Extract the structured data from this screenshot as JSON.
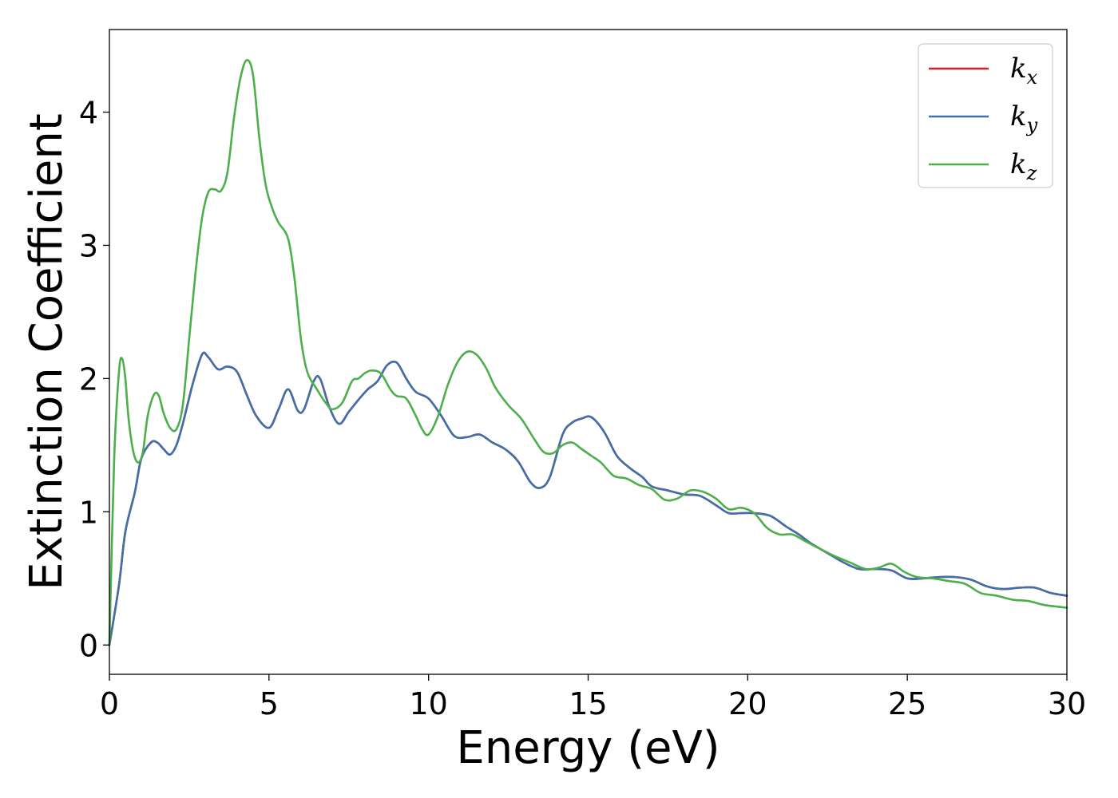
{
  "chart_data": {
    "type": "line",
    "title": "",
    "xlabel": "Energy (eV)",
    "ylabel": "Extinction Coefficient",
    "xlim": [
      0,
      30
    ],
    "ylim": [
      -0.22,
      4.62
    ],
    "xticks": [
      0,
      5,
      10,
      15,
      20,
      25,
      30
    ],
    "yticks": [
      0,
      1,
      2,
      3,
      4
    ],
    "grid": false,
    "legend_position": "top-right",
    "series": [
      {
        "name": "k",
        "subscript": "x",
        "color": "#e41a1c",
        "x": [
          0,
          0.3,
          0.5,
          0.8,
          1.0,
          1.3,
          1.5,
          1.7,
          1.9,
          2.1,
          2.3,
          2.6,
          2.9,
          3.1,
          3.4,
          3.7,
          4.0,
          4.3,
          4.6,
          5.0,
          5.3,
          5.6,
          5.9,
          6.1,
          6.4,
          6.6,
          6.9,
          7.2,
          7.5,
          7.8,
          8.1,
          8.4,
          8.7,
          9.0,
          9.3,
          9.6,
          10.0,
          10.4,
          10.8,
          11.2,
          11.6,
          12.0,
          12.4,
          12.8,
          13.2,
          13.5,
          13.8,
          14.2,
          14.5,
          14.8,
          15.1,
          15.5,
          15.9,
          16.3,
          16.7,
          17.0,
          17.5,
          18.0,
          18.5,
          19.0,
          19.4,
          19.8,
          20.2,
          20.7,
          21.2,
          21.6,
          22.0,
          22.5,
          23.0,
          23.5,
          24.0,
          24.5,
          25.0,
          25.5,
          26.0,
          26.5,
          27.0,
          27.5,
          28.0,
          28.5,
          29.0,
          29.5,
          30.0
        ],
        "y": [
          0.0,
          0.45,
          0.85,
          1.15,
          1.4,
          1.52,
          1.52,
          1.47,
          1.43,
          1.5,
          1.66,
          1.95,
          2.18,
          2.16,
          2.07,
          2.09,
          2.05,
          1.88,
          1.72,
          1.63,
          1.77,
          1.92,
          1.76,
          1.77,
          1.98,
          2.0,
          1.78,
          1.66,
          1.75,
          1.84,
          1.92,
          1.98,
          2.1,
          2.12,
          2.0,
          1.9,
          1.85,
          1.72,
          1.57,
          1.56,
          1.58,
          1.52,
          1.47,
          1.38,
          1.22,
          1.18,
          1.26,
          1.58,
          1.67,
          1.7,
          1.71,
          1.6,
          1.42,
          1.33,
          1.26,
          1.19,
          1.16,
          1.13,
          1.12,
          1.05,
          0.99,
          0.99,
          0.99,
          0.97,
          0.89,
          0.83,
          0.76,
          0.69,
          0.62,
          0.57,
          0.57,
          0.56,
          0.5,
          0.5,
          0.51,
          0.51,
          0.49,
          0.44,
          0.42,
          0.43,
          0.43,
          0.39,
          0.37
        ]
      },
      {
        "name": "k",
        "subscript": "y",
        "color": "#3e71ab",
        "x": [
          0,
          0.3,
          0.5,
          0.8,
          1.0,
          1.3,
          1.5,
          1.7,
          1.9,
          2.1,
          2.3,
          2.6,
          2.9,
          3.1,
          3.4,
          3.7,
          4.0,
          4.3,
          4.6,
          5.0,
          5.3,
          5.6,
          5.9,
          6.1,
          6.4,
          6.6,
          6.9,
          7.2,
          7.5,
          7.8,
          8.1,
          8.4,
          8.7,
          9.0,
          9.3,
          9.6,
          10.0,
          10.4,
          10.8,
          11.2,
          11.6,
          12.0,
          12.4,
          12.8,
          13.2,
          13.5,
          13.8,
          14.2,
          14.5,
          14.8,
          15.1,
          15.5,
          15.9,
          16.3,
          16.7,
          17.0,
          17.5,
          18.0,
          18.5,
          19.0,
          19.4,
          19.8,
          20.2,
          20.7,
          21.2,
          21.6,
          22.0,
          22.5,
          23.0,
          23.5,
          24.0,
          24.5,
          25.0,
          25.5,
          26.0,
          26.5,
          27.0,
          27.5,
          28.0,
          28.5,
          29.0,
          29.5,
          30.0
        ],
        "y": [
          0.0,
          0.45,
          0.85,
          1.15,
          1.4,
          1.52,
          1.52,
          1.47,
          1.43,
          1.5,
          1.66,
          1.95,
          2.18,
          2.16,
          2.07,
          2.09,
          2.05,
          1.88,
          1.72,
          1.63,
          1.77,
          1.92,
          1.76,
          1.77,
          1.98,
          2.0,
          1.78,
          1.66,
          1.75,
          1.84,
          1.92,
          1.98,
          2.1,
          2.12,
          2.0,
          1.9,
          1.85,
          1.72,
          1.57,
          1.56,
          1.58,
          1.52,
          1.47,
          1.38,
          1.22,
          1.18,
          1.26,
          1.58,
          1.67,
          1.7,
          1.71,
          1.6,
          1.42,
          1.33,
          1.26,
          1.19,
          1.16,
          1.13,
          1.12,
          1.05,
          0.99,
          0.99,
          0.99,
          0.97,
          0.89,
          0.83,
          0.76,
          0.69,
          0.62,
          0.57,
          0.57,
          0.56,
          0.5,
          0.5,
          0.51,
          0.51,
          0.49,
          0.44,
          0.42,
          0.43,
          0.43,
          0.39,
          0.37
        ]
      },
      {
        "name": "k",
        "subscript": "z",
        "color": "#4daf4a",
        "x": [
          0,
          0.15,
          0.3,
          0.4,
          0.5,
          0.6,
          0.75,
          0.9,
          1.05,
          1.2,
          1.4,
          1.55,
          1.7,
          1.9,
          2.1,
          2.3,
          2.5,
          2.7,
          2.9,
          3.1,
          3.3,
          3.5,
          3.7,
          3.9,
          4.1,
          4.3,
          4.5,
          4.7,
          4.9,
          5.1,
          5.3,
          5.6,
          5.8,
          6.0,
          6.2,
          6.5,
          6.8,
          7.0,
          7.3,
          7.6,
          7.8,
          8.0,
          8.2,
          8.5,
          8.8,
          9.0,
          9.3,
          9.6,
          9.8,
          10.0,
          10.3,
          10.6,
          10.9,
          11.2,
          11.5,
          11.8,
          12.1,
          12.5,
          12.9,
          13.3,
          13.6,
          13.9,
          14.2,
          14.5,
          14.8,
          15.1,
          15.4,
          15.8,
          16.2,
          16.6,
          17.0,
          17.4,
          17.8,
          18.2,
          18.6,
          19.0,
          19.4,
          19.8,
          20.2,
          20.6,
          21.0,
          21.4,
          21.8,
          22.2,
          22.7,
          23.2,
          23.7,
          24.1,
          24.5,
          24.9,
          25.3,
          25.8,
          26.3,
          26.8,
          27.3,
          27.8,
          28.3,
          28.8,
          29.3,
          30.0
        ],
        "y": [
          0.0,
          1.4,
          2.05,
          2.15,
          2.0,
          1.7,
          1.45,
          1.37,
          1.45,
          1.72,
          1.88,
          1.87,
          1.74,
          1.63,
          1.62,
          1.8,
          2.3,
          2.8,
          3.2,
          3.4,
          3.42,
          3.41,
          3.55,
          3.95,
          4.25,
          4.39,
          4.28,
          3.8,
          3.45,
          3.28,
          3.17,
          3.05,
          2.75,
          2.3,
          2.05,
          1.92,
          1.81,
          1.77,
          1.82,
          1.98,
          2.0,
          2.04,
          2.06,
          2.04,
          1.92,
          1.87,
          1.85,
          1.72,
          1.62,
          1.58,
          1.72,
          1.95,
          2.12,
          2.2,
          2.18,
          2.08,
          1.93,
          1.8,
          1.7,
          1.55,
          1.45,
          1.44,
          1.5,
          1.52,
          1.47,
          1.42,
          1.37,
          1.27,
          1.25,
          1.2,
          1.17,
          1.09,
          1.1,
          1.16,
          1.15,
          1.1,
          1.02,
          1.03,
          0.99,
          0.88,
          0.83,
          0.83,
          0.78,
          0.73,
          0.67,
          0.62,
          0.57,
          0.58,
          0.61,
          0.55,
          0.51,
          0.5,
          0.48,
          0.46,
          0.39,
          0.37,
          0.34,
          0.33,
          0.3,
          0.28
        ]
      }
    ]
  }
}
